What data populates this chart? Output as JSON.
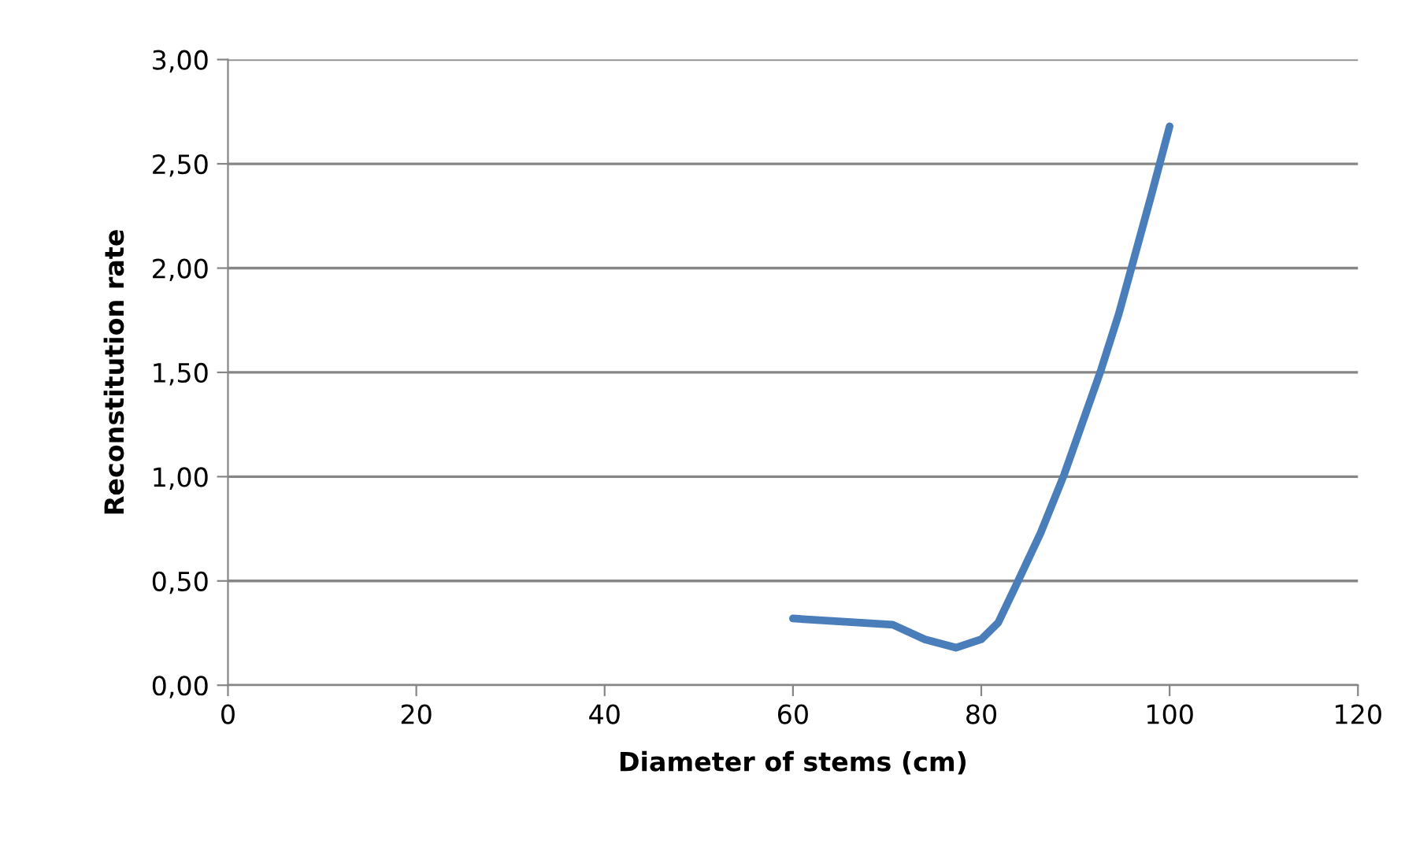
{
  "chart_data": {
    "type": "line",
    "xlabel": "Diameter of stems (cm)",
    "ylabel": "Reconstitution rate",
    "series": [
      {
        "color": "#4a7ebb",
        "x": [
          60,
          70.6,
          74,
          77.3,
          80,
          81.8,
          83.7,
          86.3,
          88.8,
          91.3,
          92.7,
          94.6,
          96.0,
          98.0,
          100
        ],
        "values": [
          0.32,
          0.29,
          0.22,
          0.18,
          0.22,
          0.3,
          0.48,
          0.73,
          1.01,
          1.33,
          1.51,
          1.78,
          2.01,
          2.34,
          2.68
        ]
      }
    ],
    "xlim": [
      0,
      120
    ],
    "xticks": [
      0,
      20,
      40,
      60,
      80,
      100,
      120
    ],
    "ylim": [
      0,
      3
    ],
    "yticks": [
      {
        "value": 0,
        "label": "0,00"
      },
      {
        "value": 0.5,
        "label": "0,50"
      },
      {
        "value": 1,
        "label": "1,00"
      },
      {
        "value": 1.5,
        "label": "1,50"
      },
      {
        "value": 2,
        "label": "2,00"
      },
      {
        "value": 2.5,
        "label": "2,50"
      },
      {
        "value": 3,
        "label": "3,00"
      }
    ],
    "grid": "y",
    "marker": "none",
    "line_style": "solid"
  }
}
